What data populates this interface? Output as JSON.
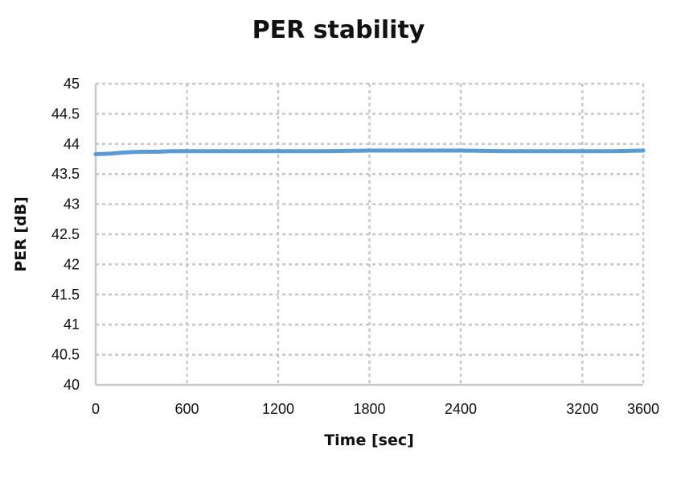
{
  "chart_data": {
    "type": "line",
    "title": "PER stability",
    "xlabel": "Time [sec]",
    "ylabel": "PER [dB]",
    "xlim": [
      0,
      3600
    ],
    "ylim": [
      40,
      45
    ],
    "x_ticks": [
      0,
      600,
      1200,
      1800,
      2400,
      3200,
      3600
    ],
    "x_tick_labels": [
      "0",
      "600",
      "1200",
      "1800",
      "2400",
      "3200",
      "3600"
    ],
    "y_ticks": [
      40,
      40.5,
      41,
      41.5,
      42,
      42.5,
      43,
      43.5,
      44,
      44.5,
      45
    ],
    "y_tick_labels": [
      "40",
      "40.5",
      "41",
      "41.5",
      "42",
      "42.5",
      "43",
      "43.5",
      "44",
      "44.5",
      "45"
    ],
    "grid": true,
    "legend": "none",
    "series": [
      {
        "color": "#5b9bd5",
        "x": [
          0,
          100,
          200,
          300,
          400,
          500,
          600,
          900,
          1200,
          1500,
          1800,
          2100,
          2400,
          2700,
          3000,
          3200,
          3400,
          3600
        ],
        "y": [
          43.83,
          43.84,
          43.86,
          43.87,
          43.87,
          43.88,
          43.88,
          43.88,
          43.88,
          43.88,
          43.89,
          43.89,
          43.89,
          43.88,
          43.88,
          43.88,
          43.88,
          43.89
        ]
      }
    ]
  }
}
